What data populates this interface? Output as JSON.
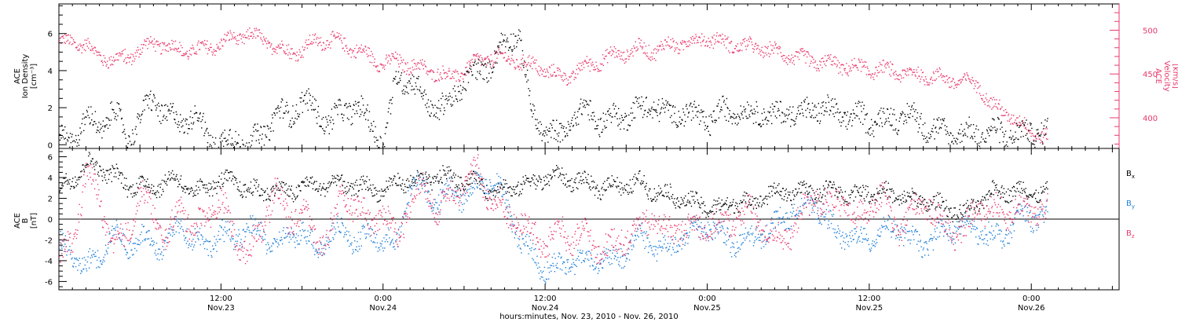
{
  "colors": {
    "black": "#000000",
    "blue": "#1f7fd8",
    "red": "#e8386b"
  },
  "x_axis": {
    "title": "hours:minutes, Nov. 23, 2010 - Nov. 26, 2010",
    "ticks": [
      {
        "hour": 12,
        "time": "12:00",
        "date": "Nov.23"
      },
      {
        "hour": 24,
        "time": "0:00",
        "date": "Nov.24"
      },
      {
        "hour": 36,
        "time": "12:00",
        "date": "Nov.24"
      },
      {
        "hour": 48,
        "time": "0:00",
        "date": "Nov.25"
      },
      {
        "hour": 60,
        "time": "12:00",
        "date": "Nov.25"
      },
      {
        "hour": 72,
        "time": "0:00",
        "date": "Nov.26"
      }
    ]
  },
  "chart_data": [
    {
      "type": "scatter",
      "panel": "top",
      "x_unit": "hours since Nov. 23, 2010 00:00",
      "xlim": [
        0,
        78.5
      ],
      "data_end_hour": 73.2,
      "left_axis": {
        "label_line1": "ACE",
        "label_line2": "Ion Density",
        "units": "[cm⁻³]",
        "ylim": [
          -0.2,
          7.6
        ],
        "ticks": [
          0,
          2,
          4,
          6
        ]
      },
      "right_axis": {
        "label_line1": "ACE",
        "label_line2": "Velocity",
        "units": "[km/s]",
        "ylim": [
          365,
          530
        ],
        "ticks": [
          400,
          450,
          500
        ]
      },
      "series": [
        {
          "name": "Ion Density",
          "axis": "left",
          "color": "#000000",
          "x": [
            0,
            1,
            2,
            3,
            4,
            5,
            6,
            7,
            8,
            9,
            10,
            11,
            12,
            13,
            14,
            15,
            16,
            17,
            18,
            19,
            20,
            21,
            22,
            23,
            24,
            25,
            26,
            27,
            28,
            29,
            30,
            31,
            32,
            33,
            34,
            35,
            36,
            37,
            38,
            39,
            40,
            41,
            42,
            43,
            44,
            45,
            46,
            47,
            48,
            49,
            50,
            51,
            52,
            53,
            54,
            55,
            56,
            57,
            58,
            59,
            60,
            61,
            62,
            63,
            64,
            65,
            66,
            67,
            68,
            69,
            70,
            71,
            72,
            73
          ],
          "y": [
            0.3,
            0.3,
            1.5,
            0.8,
            2.0,
            0.3,
            1.5,
            2.5,
            1.6,
            1.2,
            1.8,
            0.4,
            0.2,
            0.2,
            0.2,
            0.3,
            1.8,
            1.5,
            2.5,
            1.7,
            1.3,
            1.8,
            2.2,
            1.1,
            0.2,
            3.6,
            3.6,
            2.4,
            2.0,
            2.2,
            3.6,
            3.8,
            4.5,
            5.5,
            6.2,
            1.5,
            0.8,
            0.4,
            1.5,
            1.9,
            1.3,
            1.4,
            1.7,
            1.9,
            2.2,
            1.6,
            1.9,
            1.6,
            1.3,
            1.7,
            2.0,
            1.6,
            1.9,
            1.4,
            2.0,
            1.6,
            2.1,
            1.8,
            1.6,
            1.5,
            1.4,
            1.3,
            1.5,
            1.6,
            1.1,
            0.7,
            0.6,
            0.6,
            0.6,
            0.7,
            0.6,
            0.5,
            0.8,
            0.7
          ]
        },
        {
          "name": "Velocity",
          "axis": "right",
          "color": "#e8386b",
          "x": [
            0,
            1,
            2,
            3,
            4,
            5,
            6,
            7,
            8,
            9,
            10,
            11,
            12,
            13,
            14,
            15,
            16,
            17,
            18,
            19,
            20,
            21,
            22,
            23,
            24,
            25,
            26,
            27,
            28,
            29,
            30,
            31,
            32,
            33,
            34,
            35,
            36,
            37,
            38,
            39,
            40,
            41,
            42,
            43,
            44,
            45,
            46,
            47,
            48,
            49,
            50,
            51,
            52,
            53,
            54,
            55,
            56,
            57,
            58,
            59,
            60,
            61,
            62,
            63,
            64,
            65,
            66,
            67,
            68,
            69,
            70,
            71,
            72,
            73
          ],
          "y": [
            485,
            488,
            482,
            472,
            465,
            470,
            478,
            487,
            482,
            478,
            477,
            480,
            485,
            492,
            495,
            490,
            482,
            475,
            478,
            488,
            490,
            485,
            478,
            470,
            462,
            466,
            460,
            456,
            452,
            446,
            456,
            465,
            470,
            468,
            465,
            460,
            455,
            447,
            450,
            460,
            465,
            472,
            475,
            480,
            477,
            482,
            485,
            488,
            492,
            487,
            484,
            482,
            480,
            476,
            472,
            468,
            464,
            463,
            460,
            457,
            456,
            455,
            453,
            450,
            448,
            447,
            444,
            441,
            440,
            415,
            408,
            395,
            385,
            378
          ]
        }
      ]
    },
    {
      "type": "scatter",
      "panel": "bottom",
      "x_unit": "hours since Nov. 23, 2010 00:00",
      "xlim": [
        0,
        78.5
      ],
      "data_end_hour": 73.2,
      "left_axis": {
        "label_line1": "ACE",
        "label_line2": "B",
        "units": "[nT]",
        "ylim": [
          -6.8,
          6.8
        ],
        "ticks": [
          -6,
          -4,
          -2,
          0,
          2,
          4,
          6
        ]
      },
      "zero_line": true,
      "series": [
        {
          "name": "Bx",
          "label_main": "B",
          "label_sub": "x",
          "color": "#000000",
          "x": [
            0,
            1,
            2,
            3,
            4,
            5,
            6,
            7,
            8,
            9,
            10,
            11,
            12,
            13,
            14,
            15,
            16,
            17,
            18,
            19,
            20,
            21,
            22,
            23,
            24,
            25,
            26,
            27,
            28,
            29,
            30,
            31,
            32,
            33,
            34,
            35,
            36,
            37,
            38,
            39,
            40,
            41,
            42,
            43,
            44,
            45,
            46,
            47,
            48,
            49,
            50,
            51,
            52,
            53,
            54,
            55,
            56,
            57,
            58,
            59,
            60,
            61,
            62,
            63,
            64,
            65,
            66,
            67,
            68,
            69,
            70,
            71,
            72,
            73
          ],
          "y": [
            3.0,
            3.8,
            5.5,
            4.8,
            4.5,
            3.2,
            3.5,
            2.8,
            4.0,
            3.5,
            2.5,
            3.2,
            3.8,
            3.5,
            3.0,
            2.5,
            3.2,
            2.4,
            3.5,
            3.0,
            3.6,
            3.4,
            3.2,
            3.0,
            2.8,
            3.5,
            3.8,
            3.6,
            4.2,
            4.0,
            3.8,
            3.6,
            2.8,
            3.0,
            3.2,
            3.6,
            4.0,
            4.2,
            3.8,
            3.5,
            3.0,
            3.4,
            3.2,
            3.6,
            2.8,
            2.4,
            2.0,
            1.6,
            1.2,
            1.0,
            1.8,
            1.5,
            2.2,
            2.6,
            2.4,
            2.8,
            2.7,
            2.8,
            2.6,
            2.4,
            2.7,
            2.6,
            2.3,
            2.0,
            1.8,
            1.5,
            1.0,
            0.5,
            1.5,
            2.6,
            2.8,
            2.8,
            2.6,
            2.6
          ]
        },
        {
          "name": "By",
          "label_main": "B",
          "label_sub": "y",
          "color": "#1f7fd8",
          "x": [
            0,
            1,
            2,
            3,
            4,
            5,
            6,
            7,
            8,
            9,
            10,
            11,
            12,
            13,
            14,
            15,
            16,
            17,
            18,
            19,
            20,
            21,
            22,
            23,
            24,
            25,
            26,
            27,
            28,
            29,
            30,
            31,
            32,
            33,
            34,
            35,
            36,
            37,
            38,
            39,
            40,
            41,
            42,
            43,
            44,
            45,
            46,
            47,
            48,
            49,
            50,
            51,
            52,
            53,
            54,
            55,
            56,
            57,
            58,
            59,
            60,
            61,
            62,
            63,
            64,
            65,
            66,
            67,
            68,
            69,
            70,
            71,
            72,
            73
          ],
          "y": [
            -2.5,
            -3.5,
            -4.5,
            -3.5,
            -1.0,
            -2.8,
            -1.5,
            -3.0,
            -2.0,
            -0.5,
            -1.8,
            -2.5,
            -1.2,
            -2.0,
            -0.8,
            -1.5,
            -2.5,
            -1.8,
            -1.0,
            -3.0,
            -1.5,
            -0.8,
            -2.2,
            -1.5,
            -2.0,
            -2.5,
            3.5,
            3.0,
            1.5,
            2.8,
            2.0,
            3.5,
            4.0,
            2.0,
            -1.5,
            -3.5,
            -4.8,
            -4.5,
            -3.8,
            -4.0,
            -3.6,
            -4.2,
            -3.0,
            -1.5,
            -2.5,
            -3.0,
            -2.0,
            -1.0,
            -0.5,
            -1.5,
            -2.5,
            -2.0,
            -1.5,
            -0.5,
            0.5,
            1.0,
            1.5,
            -0.5,
            -1.5,
            -2.0,
            -1.8,
            -1.0,
            -0.5,
            -2.0,
            -2.5,
            -1.5,
            -1.0,
            -0.5,
            -1.2,
            -1.5,
            -1.8,
            0.5,
            0.2,
            0.4
          ]
        },
        {
          "name": "Bz",
          "label_main": "B",
          "label_sub": "z",
          "color": "#e8386b",
          "x": [
            0,
            1,
            2,
            3,
            4,
            5,
            6,
            7,
            8,
            9,
            10,
            11,
            12,
            13,
            14,
            15,
            16,
            17,
            18,
            19,
            20,
            21,
            22,
            23,
            24,
            25,
            26,
            27,
            28,
            29,
            30,
            31,
            32,
            33,
            34,
            35,
            36,
            37,
            38,
            39,
            40,
            41,
            42,
            43,
            44,
            45,
            46,
            47,
            48,
            49,
            50,
            51,
            52,
            53,
            54,
            55,
            56,
            57,
            58,
            59,
            60,
            61,
            62,
            63,
            64,
            65,
            66,
            67,
            68,
            69,
            70,
            71,
            72,
            73
          ],
          "y": [
            -4.0,
            -2.0,
            4.5,
            2.0,
            -3.0,
            -1.5,
            2.5,
            0.5,
            -2.0,
            1.5,
            -1.0,
            0.5,
            2.0,
            -2.0,
            -3.0,
            -1.0,
            3.5,
            -0.5,
            1.5,
            -2.5,
            -1.0,
            2.0,
            1.5,
            -0.5,
            1.0,
            -2.0,
            2.0,
            3.0,
            1.0,
            2.5,
            3.5,
            4.5,
            2.0,
            0.5,
            0.0,
            -1.5,
            -2.5,
            -1.0,
            -2.0,
            -1.5,
            -3.0,
            -2.5,
            -1.5,
            -1.0,
            0.5,
            -1.5,
            -0.5,
            -1.0,
            -0.5,
            -0.8,
            0.2,
            0.8,
            -0.5,
            -2.0,
            -1.5,
            0.5,
            2.5,
            1.0,
            2.0,
            -0.5,
            1.5,
            2.0,
            -1.0,
            0.5,
            2.0,
            0.0,
            -1.0,
            -1.5,
            1.5,
            0.8,
            0.8,
            0.8,
            1.0,
            0.7
          ]
        }
      ]
    }
  ]
}
